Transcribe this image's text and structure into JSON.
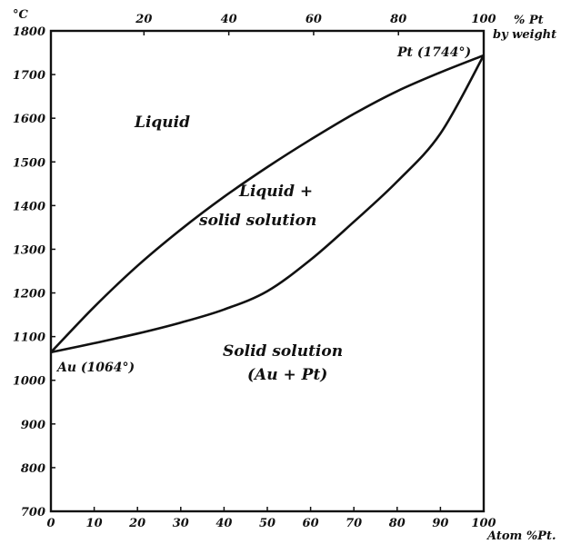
{
  "chart_data": {
    "type": "line",
    "title": "",
    "y_unit_label": "°C",
    "top_axis_label_lines": [
      "% Pt",
      "by weight"
    ],
    "bottom_axis_label": "Atom %Pt.",
    "ylim": [
      700,
      1800
    ],
    "y_ticks": [
      700,
      800,
      900,
      1000,
      1100,
      1200,
      1300,
      1400,
      1500,
      1600,
      1700,
      1800
    ],
    "xlim": [
      0,
      100
    ],
    "x_ticks_bottom": [
      0,
      10,
      20,
      30,
      40,
      50,
      60,
      70,
      80,
      90,
      100
    ],
    "top_axis_ticks": [
      {
        "label": "20",
        "atom_pct": 21.5
      },
      {
        "label": "40",
        "atom_pct": 41.1
      },
      {
        "label": "60",
        "atom_pct": 60.7
      },
      {
        "label": "80",
        "atom_pct": 80.3
      },
      {
        "label": "100",
        "atom_pct": 100
      }
    ],
    "series": [
      {
        "role": "liquidus",
        "x": [
          0,
          10,
          20,
          30,
          40,
          50,
          60,
          70,
          80,
          90,
          100
        ],
        "y": [
          1064,
          1168,
          1262,
          1345,
          1420,
          1488,
          1551,
          1610,
          1662,
          1705,
          1744
        ]
      },
      {
        "role": "solidus",
        "x": [
          0,
          10,
          20,
          30,
          40,
          50,
          60,
          70,
          80,
          90,
          100
        ],
        "y": [
          1064,
          1085,
          1107,
          1132,
          1162,
          1204,
          1276,
          1363,
          1455,
          1565,
          1744
        ]
      }
    ],
    "region_labels": {
      "liquid": [
        "Liquid"
      ],
      "two_phase": [
        "Liquid +",
        "solid solution"
      ],
      "solid": [
        "Solid solution",
        "(Au + Pt)"
      ]
    },
    "annotations": {
      "au_point": "Au (1064°)",
      "pt_point": "Pt (1744°)"
    }
  }
}
